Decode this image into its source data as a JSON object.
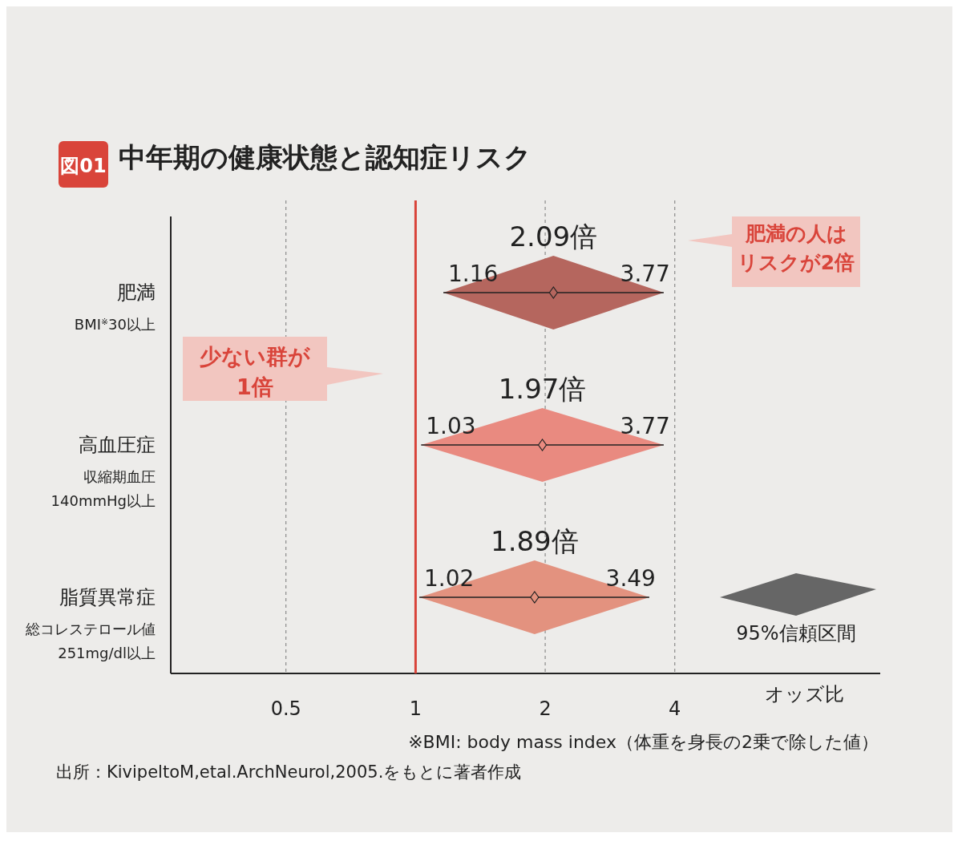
{
  "chart_data": {
    "type": "scatter",
    "orientation": "horizontal",
    "title": "中年期の健康状態と認知症リスク",
    "xlabel": "オッズ比",
    "categories": [
      "肥満",
      "高血圧症",
      "脂質異常症"
    ],
    "values": [
      2.09,
      1.97,
      1.89
    ],
    "errors": [
      [
        1.16,
        3.77
      ],
      [
        1.03,
        3.77
      ],
      [
        1.02,
        3.49
      ]
    ],
    "value_labels": [
      "2.09倍",
      "1.97倍",
      "1.89倍"
    ],
    "colors": [
      "#b5665e",
      "#e98a80",
      "#e3927f"
    ],
    "log": "x",
    "grid": "x",
    "marker": "diamond",
    "xlim": [
      0.27,
      12
    ],
    "xticks": [
      0.5,
      1,
      2,
      4
    ],
    "ref_lines": [
      {
        "axis": "x",
        "value": 1,
        "label": "少ない群が\n1倍",
        "color": "#d9443a"
      }
    ],
    "annotations": [
      "図01",
      "肥満の人はリスクが2倍",
      "95%信頼区間",
      "※BMI: body mass index（体重を身長の2乗で除した値）",
      "出所：KivipeltoM,etal.ArchNeurol,2005.をもとに著者作成",
      "1.16",
      "3.77",
      "1.03",
      "3.77",
      "1.02",
      "3.49",
      "BMI$^{※}$30以上",
      "収縮期血圧",
      "140mmHg以上",
      "総コレステロール値",
      "251mg/dl以上"
    ]
  }
}
